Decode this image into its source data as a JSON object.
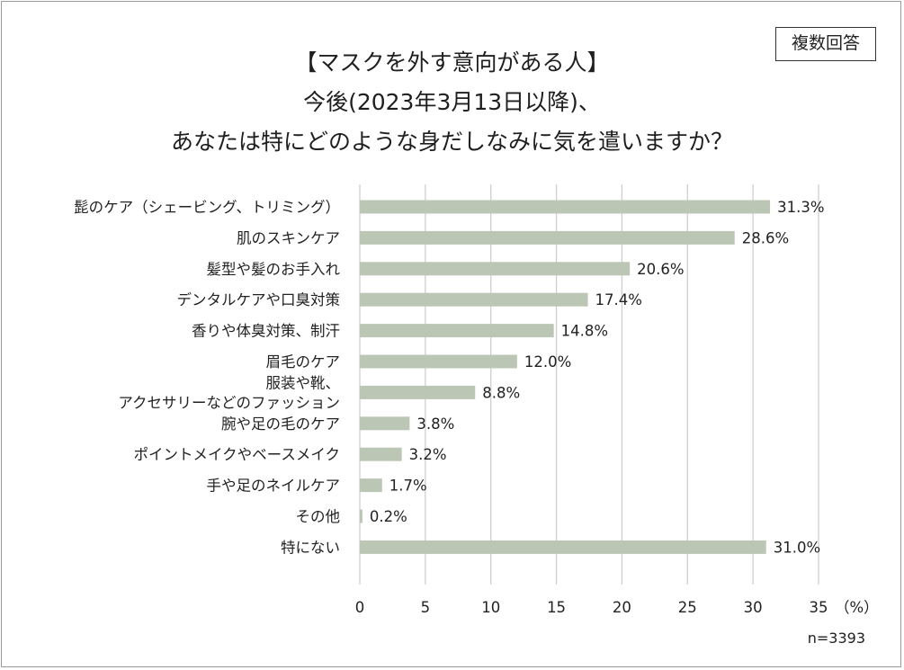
{
  "badge": "複数回答",
  "title_lines": [
    "【マスクを外す意向がある人】",
    "今後(2023年3月13日以降)、",
    "あなたは特にどのような身だしなみに気を遣いますか？"
  ],
  "sample_note": "n=3393",
  "chart_data": {
    "type": "bar",
    "orientation": "horizontal",
    "categories": [
      [
        "髭のケア（シェービング、トリミング）"
      ],
      [
        "肌のスキンケア"
      ],
      [
        "髪型や髪のお手入れ"
      ],
      [
        "デンタルケアや口臭対策"
      ],
      [
        "香りや体臭対策、制汗"
      ],
      [
        "眉毛のケア"
      ],
      [
        "服装や靴、",
        "アクセサリーなどのファッション"
      ],
      [
        "腕や足の毛のケア"
      ],
      [
        "ポイントメイクやベースメイク"
      ],
      [
        "手や足のネイルケア"
      ],
      [
        "その他"
      ],
      [
        "特にない"
      ]
    ],
    "values": [
      31.3,
      28.6,
      20.6,
      17.4,
      14.8,
      12.0,
      8.8,
      3.8,
      3.2,
      1.7,
      0.2,
      31.0
    ],
    "value_labels": [
      "31.3%",
      "28.6%",
      "20.6%",
      "17.4%",
      "14.8%",
      "12.0%",
      "8.8%",
      "3.8%",
      "3.2%",
      "1.7%",
      "0.2%",
      "31.0%"
    ],
    "xlim": [
      0,
      35
    ],
    "xticks": [
      "0",
      "5",
      "10",
      "15",
      "20",
      "25",
      "30",
      "35"
    ],
    "x_unit": "（%）",
    "grid": "vertical",
    "bar_color": "#bcc6b5",
    "grid_color": "#cfcfcf"
  }
}
